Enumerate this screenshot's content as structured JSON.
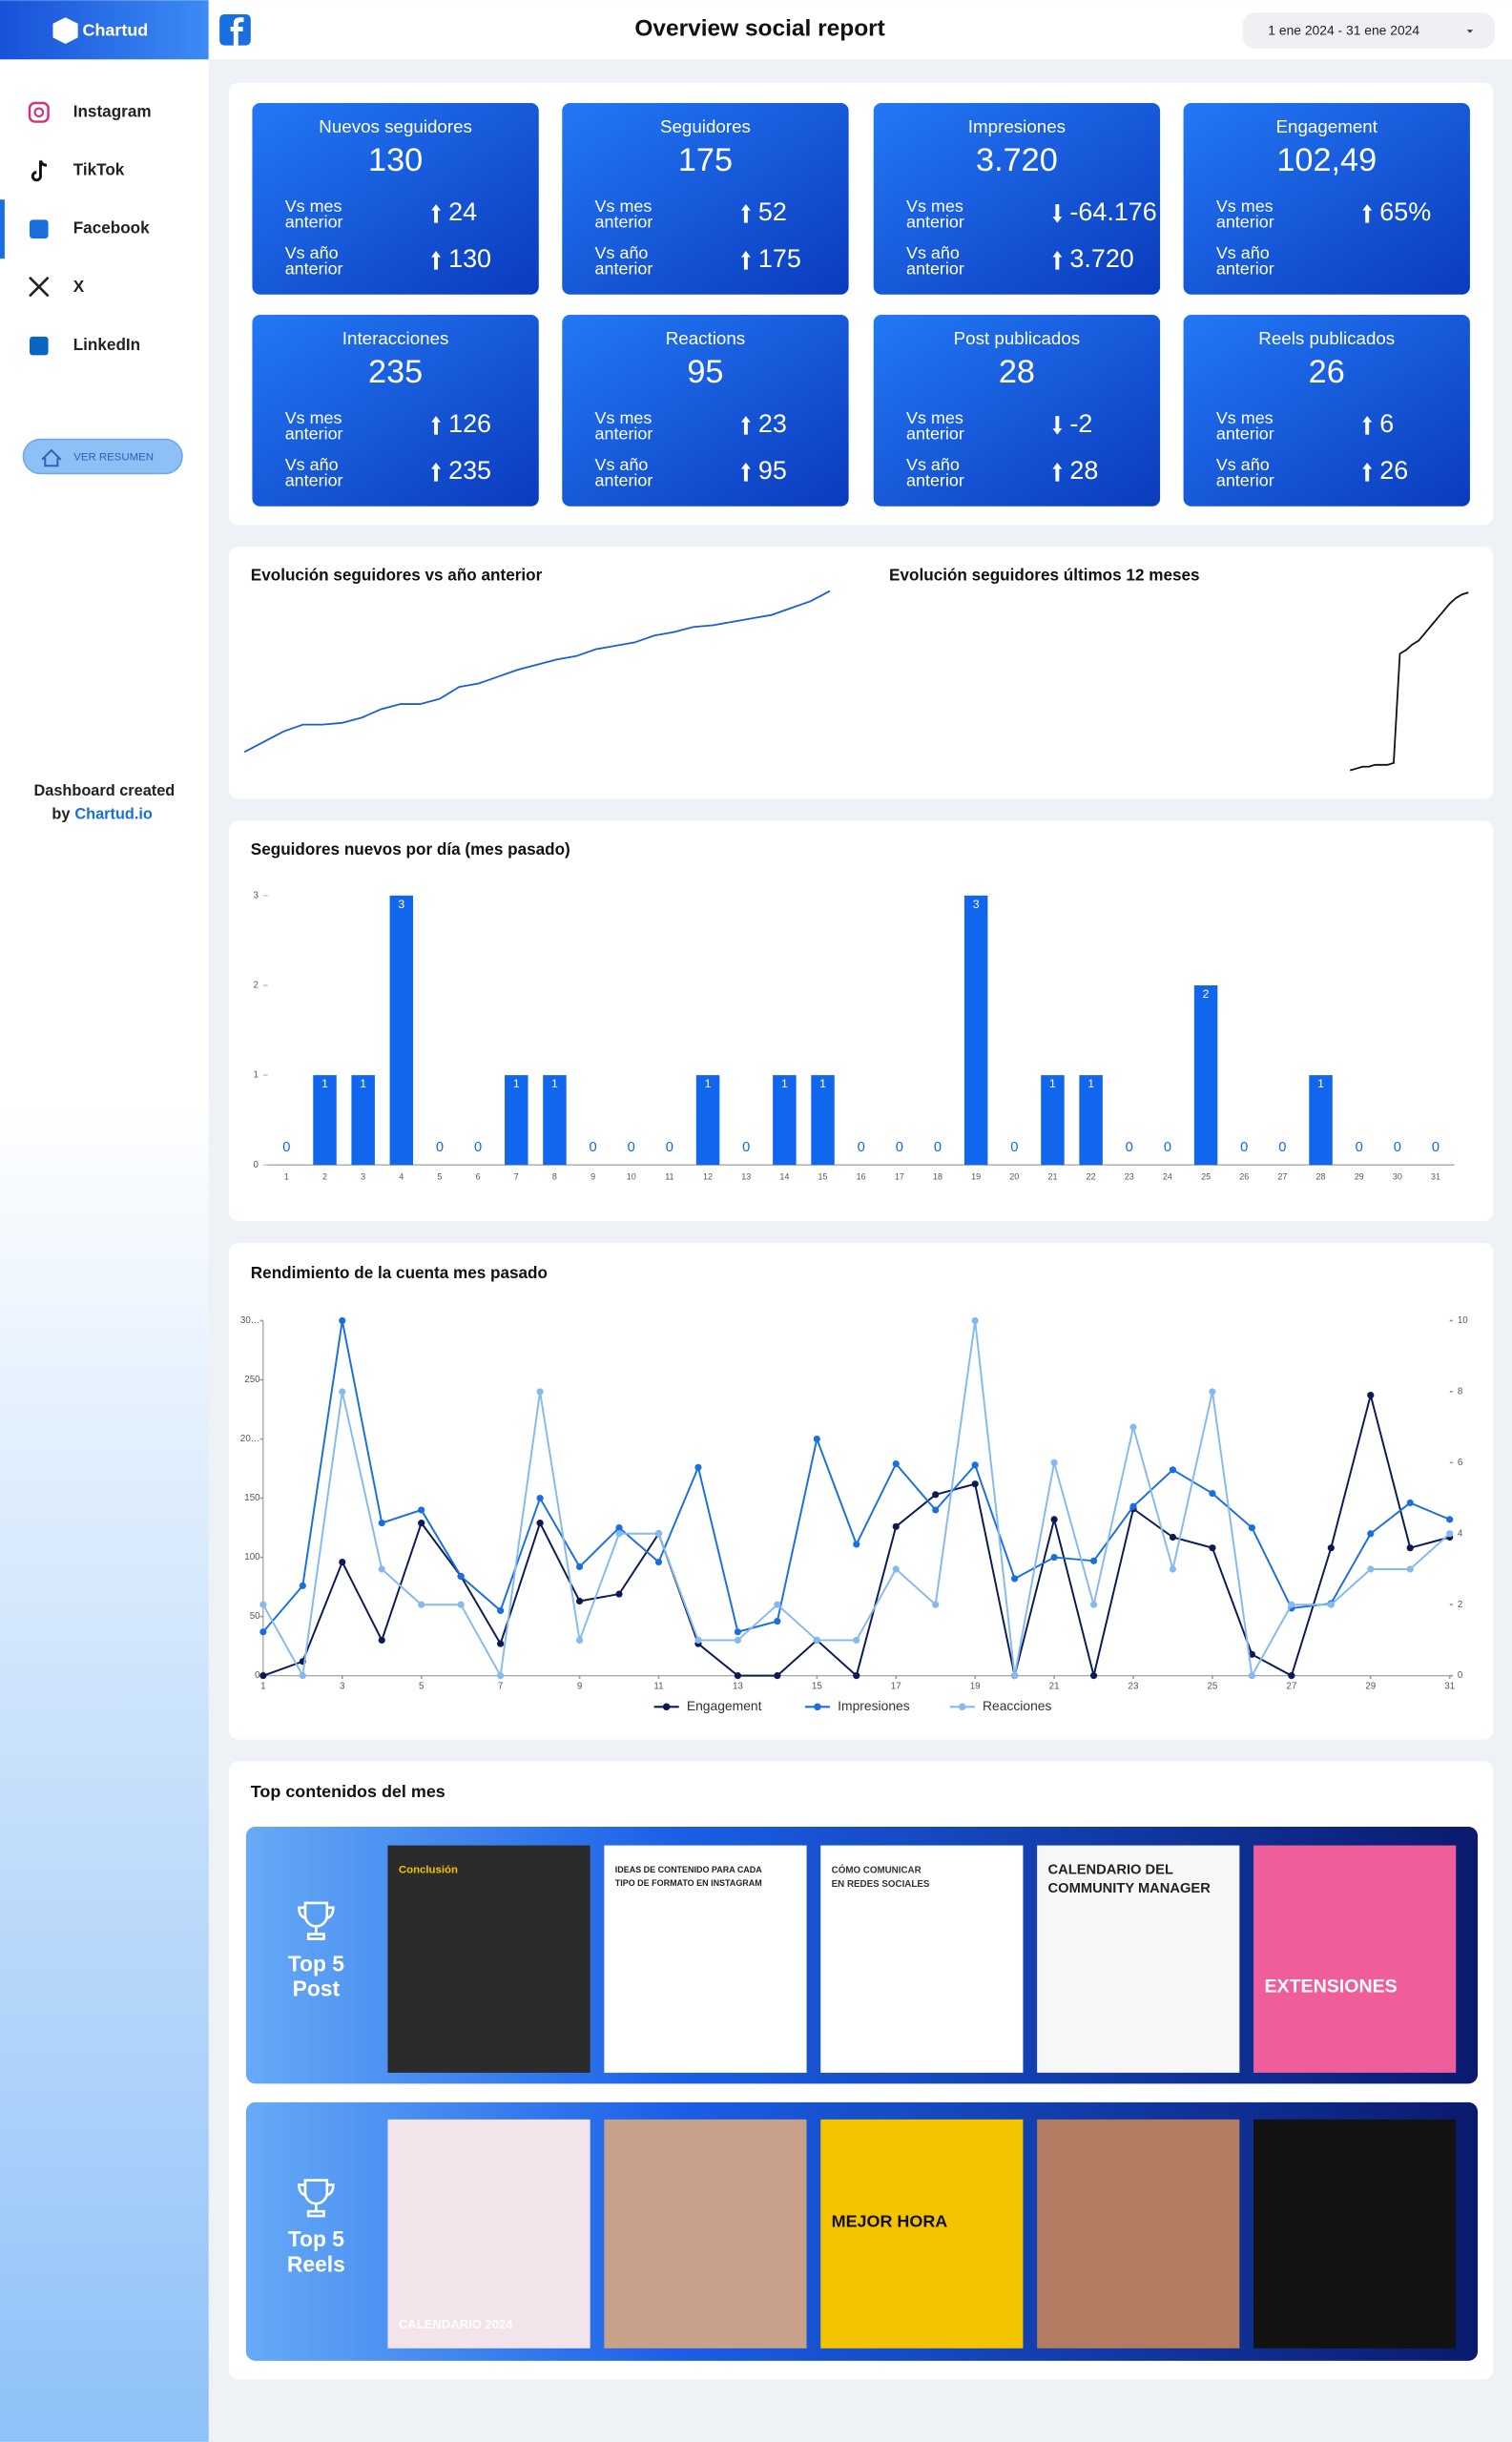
{
  "sidebar": {
    "logo": "Chartud",
    "nav": [
      "Instagram",
      "TikTok",
      "Facebook",
      "X",
      "LinkedIn"
    ],
    "active": 2,
    "button": "VER RESUMEN",
    "credit": [
      "Dashboard created",
      "by",
      "Chartud.io"
    ]
  },
  "header": {
    "title": "Overview social report",
    "date_range": "1 ene 2024 - 31 ene 2024"
  },
  "kpi": {
    "vs_mes": [
      "Vs mes",
      "anterior"
    ],
    "vs_ano": [
      "Vs año",
      "anterior"
    ],
    "cards": [
      {
        "title": "Nuevos seguidores",
        "value": "130",
        "mes": "24",
        "mes_dir": "up",
        "ano": "130",
        "ano_dir": "up"
      },
      {
        "title": "Seguidores",
        "value": "175",
        "mes": "52",
        "mes_dir": "up",
        "ano": "175",
        "ano_dir": "up"
      },
      {
        "title": "Impresiones",
        "value": "3.720",
        "mes": "-64.176",
        "mes_dir": "down",
        "ano": "3.720",
        "ano_dir": "up"
      },
      {
        "title": "Engagement",
        "value": "102,49",
        "mes": "65%",
        "mes_dir": "up",
        "ano": null,
        "ano_dir": null
      },
      {
        "title": "Interacciones",
        "value": "235",
        "mes": "126",
        "mes_dir": "up",
        "ano": "235",
        "ano_dir": "up"
      },
      {
        "title": "Reactions",
        "value": "95",
        "mes": "23",
        "mes_dir": "up",
        "ano": "95",
        "ano_dir": "up"
      },
      {
        "title": "Post publicados",
        "value": "28",
        "mes": "-2",
        "mes_dir": "down",
        "ano": "28",
        "ano_dir": "up"
      },
      {
        "title": "Reels publicados",
        "value": "26",
        "mes": "6",
        "mes_dir": "up",
        "ano": "26",
        "ano_dir": "up"
      }
    ]
  },
  "chart_data": [
    {
      "type": "line",
      "title": "Evolución seguidores vs año anterior",
      "color": "#1a5fd6",
      "ylim": [
        0,
        100
      ],
      "values": [
        2,
        8,
        14,
        18,
        18,
        19,
        22,
        27,
        30,
        30,
        33,
        40,
        42,
        46,
        50,
        53,
        56,
        58,
        62,
        64,
        66,
        70,
        72,
        75,
        76,
        78,
        80,
        82,
        86,
        90,
        96
      ]
    },
    {
      "type": "line",
      "title": "Evolución seguidores últimos 12 meses",
      "color": "#111111",
      "ylim": [
        0,
        100
      ],
      "values": [
        2,
        3,
        4,
        4,
        5,
        5,
        5,
        6,
        65,
        67,
        70,
        72,
        76,
        80,
        84,
        88,
        92,
        95,
        97,
        98
      ]
    },
    {
      "type": "bar",
      "title": "Seguidores nuevos por día (mes pasado)",
      "color": "#1166ee",
      "ylim": [
        0,
        3
      ],
      "yticks": [
        0,
        1,
        2,
        3
      ],
      "categories": [
        "1",
        "2",
        "3",
        "4",
        "5",
        "6",
        "7",
        "8",
        "9",
        "10",
        "11",
        "12",
        "13",
        "14",
        "15",
        "16",
        "17",
        "18",
        "19",
        "20",
        "21",
        "22",
        "23",
        "24",
        "25",
        "26",
        "27",
        "28",
        "29",
        "30",
        "31"
      ],
      "values": [
        0,
        1,
        1,
        3,
        0,
        0,
        1,
        1,
        0,
        0,
        0,
        1,
        0,
        1,
        1,
        0,
        0,
        0,
        3,
        0,
        1,
        1,
        0,
        0,
        2,
        0,
        0,
        1,
        0,
        0,
        0
      ]
    },
    {
      "type": "line",
      "title": "Rendimiento de la cuenta mes pasado",
      "legend": "bottom",
      "x": [
        1,
        2,
        3,
        4,
        5,
        6,
        7,
        8,
        9,
        10,
        11,
        12,
        13,
        14,
        15,
        16,
        17,
        18,
        19,
        20,
        21,
        22,
        23,
        24,
        25,
        26,
        27,
        28,
        29,
        30,
        31
      ],
      "xlim": [
        1,
        31
      ],
      "xticks": [
        1,
        3,
        5,
        7,
        9,
        11,
        13,
        15,
        17,
        19,
        21,
        23,
        25,
        27,
        29,
        31
      ],
      "ylim": [
        0,
        300
      ],
      "yticks": [
        0,
        50,
        100,
        150,
        {
          "value": 200,
          "label": "20…"
        },
        250,
        {
          "value": 300,
          "label": "30…"
        }
      ],
      "y2lim": [
        0,
        10
      ],
      "y2ticks": [
        0,
        2,
        4,
        6,
        8,
        10
      ],
      "series": [
        {
          "name": "Engagement",
          "color": "#0b1a52",
          "axis": "y2",
          "values": [
            0,
            0.4,
            3.2,
            1,
            4.3,
            2.8,
            0.9,
            4.3,
            2.1,
            2.3,
            4,
            0.9,
            0,
            0,
            1,
            0,
            4.2,
            5.1,
            5.4,
            0,
            4.4,
            0,
            4.7,
            3.9,
            3.6,
            0.6,
            0,
            3.6,
            7.9,
            3.6,
            3.9
          ]
        },
        {
          "name": "Impresiones",
          "color": "#1a6fe0",
          "values": [
            37,
            76,
            300,
            129,
            140,
            84,
            55,
            150,
            92,
            125,
            96,
            176,
            37,
            46,
            200,
            111,
            179,
            140,
            178,
            82,
            100,
            97,
            143,
            174,
            154,
            125,
            57,
            61,
            120,
            146,
            132
          ]
        },
        {
          "name": "Reacciones",
          "color": "#86b9ee",
          "axis": "y2",
          "values": [
            2,
            0,
            8,
            3,
            2,
            2,
            0,
            8,
            1,
            4,
            4,
            1,
            1,
            2,
            1,
            1,
            3,
            2,
            10,
            0,
            6,
            2,
            7,
            3,
            8,
            0,
            2,
            2,
            3,
            3,
            4
          ]
        }
      ]
    }
  ],
  "top": {
    "title": "Top contenidos del mes",
    "rows": [
      {
        "label": [
          "Top 5",
          "Post"
        ],
        "thumbs": [
          {
            "color": "#2b2b2b",
            "text_color": "#f5c400",
            "size": 7,
            "texts": [
              "Conclusión"
            ]
          },
          {
            "color": "#ffffff",
            "text_color": "#222222",
            "size": 5.5,
            "texts": [
              "IDEAS DE CONTENIDO PARA CADA",
              "TIPO DE FORMATO EN INSTAGRAM"
            ]
          },
          {
            "color": "#ffffff",
            "text_color": "#333333",
            "size": 6,
            "texts": [
              "CÓMO COMUNICAR",
              "EN REDES SOCIALES"
            ]
          },
          {
            "color": "#f7f7f7",
            "text_color": "#222222",
            "size": 9,
            "texts": [
              "CALENDARIO DEL",
              "COMMUNITY MANAGER"
            ]
          },
          {
            "color": "#ef5d9a",
            "text_color": "#ffffff",
            "size": 12,
            "texts": [
              "EXTENSIONES"
            ]
          }
        ]
      },
      {
        "label": [
          "Top 5",
          "Reels"
        ],
        "thumbs": [
          {
            "color": "#f3e3ea",
            "text_color": "#ffffff",
            "size": 8,
            "texts": [
              "CALENDARIO 2024"
            ]
          },
          {
            "color": "#c7a18a",
            "text_color": "#ffffff",
            "size": 8,
            "texts": []
          },
          {
            "color": "#f5c400",
            "text_color": "#111111",
            "size": 11,
            "texts": [
              "MEJOR HORA"
            ]
          },
          {
            "color": "#b37c60",
            "text_color": "#ffffff",
            "size": 8,
            "texts": []
          },
          {
            "color": "#121212",
            "text_color": "#ffffff",
            "size": 8,
            "texts": []
          }
        ]
      }
    ]
  }
}
